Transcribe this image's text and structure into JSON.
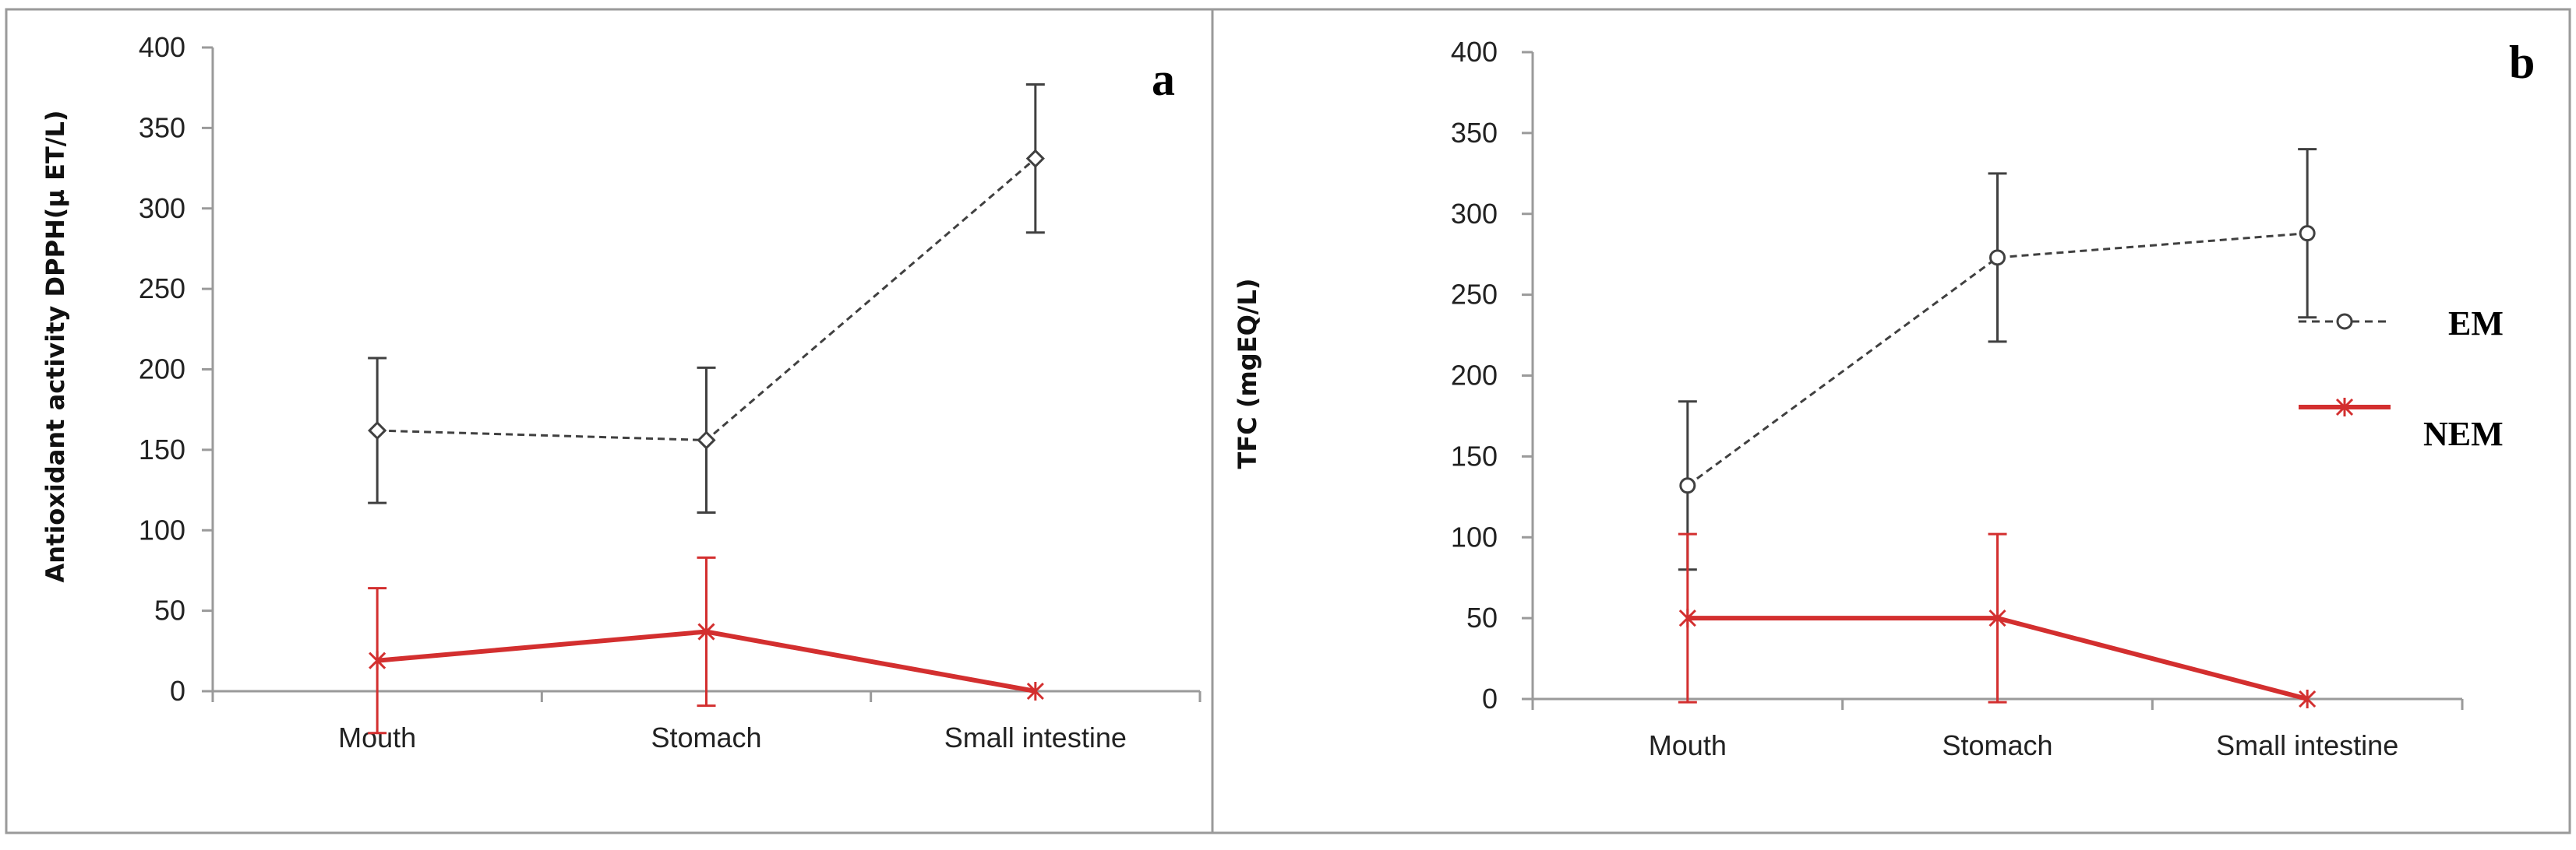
{
  "colors": {
    "em": "#404040",
    "nem": "#d32f2f",
    "axis": "#9a9a9a",
    "frame": "#9a9a9a"
  },
  "legend": {
    "em_label": "EM",
    "nem_label": "NEM"
  },
  "chart_data": [
    {
      "type": "line",
      "panel_label": "a",
      "title": "",
      "xlabel": "",
      "ylabel": "Antioxidant activity DPPH(µ ET/L)",
      "categories": [
        "Mouth",
        "Stomach",
        "Small intestine"
      ],
      "ylim": [
        0,
        400
      ],
      "yticks": [
        0,
        50,
        100,
        150,
        200,
        250,
        300,
        350,
        400
      ],
      "series": [
        {
          "name": "EM",
          "values": [
            162,
            156,
            331
          ],
          "errors": [
            45,
            45,
            46
          ],
          "style": "dashed",
          "marker": "diamond"
        },
        {
          "name": "NEM",
          "values": [
            19,
            37,
            0
          ],
          "errors": [
            45,
            46,
            0
          ],
          "style": "solid",
          "marker": "star"
        }
      ]
    },
    {
      "type": "line",
      "panel_label": "b",
      "title": "",
      "xlabel": "",
      "ylabel": "TFC (mgEQ/L)",
      "categories": [
        "Mouth",
        "Stomach",
        "Small intestine"
      ],
      "ylim": [
        0,
        400
      ],
      "yticks": [
        0,
        50,
        100,
        150,
        200,
        250,
        300,
        350,
        400
      ],
      "series": [
        {
          "name": "EM",
          "values": [
            132,
            273,
            288
          ],
          "errors": [
            52,
            52,
            52
          ],
          "style": "dashed",
          "marker": "circle"
        },
        {
          "name": "NEM",
          "values": [
            50,
            50,
            0
          ],
          "errors": [
            52,
            52,
            0
          ],
          "style": "solid",
          "marker": "star"
        }
      ]
    }
  ]
}
